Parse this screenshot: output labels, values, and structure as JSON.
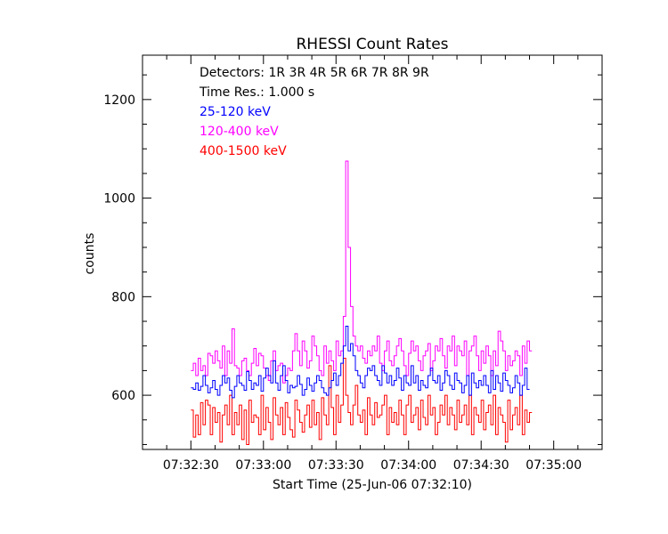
{
  "chart_data": {
    "type": "line",
    "title": "RHESSI Count Rates",
    "xlabel": "Start Time (25-Jun-06 07:32:10)",
    "ylabel": "counts",
    "xlim": [
      0,
      190
    ],
    "ylim": [
      490,
      1290
    ],
    "x_tick_labels": [
      "07:32:30",
      "07:33:00",
      "07:33:30",
      "07:34:00",
      "07:34:30",
      "07:35:00"
    ],
    "x_tick_values": [
      20,
      50,
      80,
      110,
      140,
      170
    ],
    "y_ticks": [
      600,
      800,
      1000,
      1200
    ],
    "annotations": {
      "detectors": "Detectors:  1R 3R 4R 5R 6R 7R 8R 9R",
      "time_res": "Time Res.: 1.000 s"
    },
    "legend_placement": "top-left",
    "series": [
      {
        "name": "25-120 keV",
        "color": "#0000ff",
        "x_start": 20,
        "step": 1,
        "values": [
          615,
          612,
          625,
          610,
          618,
          640,
          620,
          605,
          615,
          630,
          612,
          600,
          620,
          640,
          625,
          635,
          610,
          595,
          618,
          640,
          625,
          620,
          610,
          648,
          630,
          612,
          625,
          620,
          640,
          608,
          635,
          655,
          640,
          625,
          670,
          625,
          610,
          640,
          660,
          630,
          605,
          620,
          615,
          618,
          640,
          622,
          600,
          612,
          635,
          620,
          608,
          625,
          640,
          630,
          615,
          605,
          600,
          615,
          630,
          645,
          620,
          640,
          665,
          700,
          740,
          690,
          705,
          680,
          650,
          640,
          625,
          615,
          640,
          655,
          650,
          660,
          640,
          630,
          620,
          660,
          645,
          625,
          640,
          620,
          630,
          655,
          635,
          610,
          640,
          625,
          620,
          660,
          625,
          640,
          610,
          630,
          620,
          615,
          640,
          655,
          630,
          625,
          640,
          610,
          625,
          650,
          640,
          620,
          612,
          645,
          630,
          625,
          605,
          620,
          640,
          600,
          645,
          625,
          615,
          630,
          620,
          640,
          620,
          605,
          650,
          612,
          640,
          625,
          608,
          645,
          630,
          620,
          605,
          615,
          640,
          625,
          600,
          620,
          655,
          612
        ]
      },
      {
        "name": "120-400 keV",
        "color": "#ff00ff",
        "x_start": 20,
        "step": 1,
        "values": [
          650,
          665,
          640,
          675,
          650,
          660,
          640,
          685,
          680,
          665,
          690,
          670,
          655,
          700,
          640,
          690,
          665,
          735,
          660,
          655,
          640,
          670,
          675,
          650,
          640,
          665,
          695,
          660,
          685,
          680,
          655,
          640,
          630,
          670,
          690,
          650,
          660,
          665,
          625,
          640,
          655,
          650,
          690,
          725,
          690,
          660,
          710,
          690,
          655,
          670,
          720,
          700,
          680,
          650,
          640,
          700,
          665,
          690,
          670,
          650,
          710,
          680,
          690,
          760,
          1075,
          900,
          780,
          720,
          700,
          690,
          700,
          675,
          665,
          690,
          680,
          700,
          690,
          720,
          665,
          650,
          690,
          710,
          670,
          660,
          680,
          700,
          715,
          690,
          660,
          640,
          685,
          710,
          690,
          700,
          670,
          650,
          680,
          690,
          705,
          650,
          670,
          700,
          690,
          715,
          680,
          655,
          700,
          690,
          720,
          660,
          700,
          690,
          680,
          710,
          640,
          690,
          700,
          720,
          680,
          650,
          690,
          665,
          700,
          680,
          640,
          690,
          660,
          730,
          710,
          690,
          650,
          680,
          660,
          670,
          690,
          680,
          640,
          700,
          665,
          710,
          690
        ]
      },
      {
        "name": "400-1500 keV",
        "color": "#ff0000",
        "x_start": 20,
        "step": 1,
        "values": [
          570,
          515,
          560,
          520,
          585,
          540,
          590,
          580,
          520,
          575,
          545,
          565,
          505,
          560,
          580,
          540,
          600,
          520,
          565,
          540,
          580,
          510,
          570,
          500,
          590,
          545,
          560,
          555,
          520,
          600,
          530,
          575,
          545,
          510,
          595,
          560,
          540,
          575,
          520,
          585,
          555,
          530,
          515,
          590,
          570,
          545,
          525,
          560,
          580,
          535,
          590,
          540,
          565,
          510,
          595,
          560,
          540,
          660,
          575,
          520,
          600,
          545,
          580,
          675,
          600,
          565,
          540,
          580,
          620,
          560,
          545,
          570,
          520,
          595,
          560,
          540,
          585,
          555,
          560,
          580,
          600,
          520,
          575,
          545,
          565,
          540,
          590,
          560,
          520,
          580,
          600,
          545,
          560,
          575,
          530,
          590,
          555,
          540,
          600,
          560,
          575,
          520,
          545,
          580,
          560,
          600,
          540,
          575,
          560,
          530,
          590,
          545,
          560,
          580,
          540,
          600,
          520,
          575,
          560,
          545,
          590,
          530,
          565,
          580,
          540,
          600,
          520,
          575,
          560,
          545,
          505,
          590,
          530,
          560,
          575,
          540,
          600,
          520,
          570,
          545,
          565
        ]
      }
    ]
  }
}
